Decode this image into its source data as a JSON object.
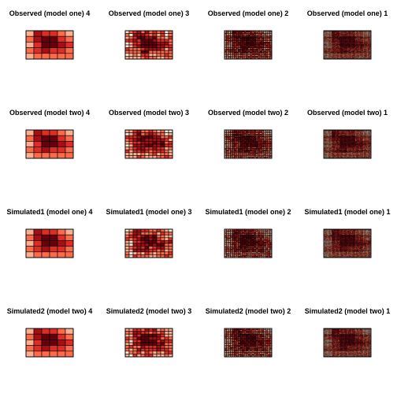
{
  "chart_data": {
    "type": "heatmap",
    "layout": "4x4 grid of cell-block heatmaps",
    "palette": [
      "#fee5d9",
      "#fcae91",
      "#fb6a4a",
      "#de2d26",
      "#a50f15",
      "#67000d"
    ],
    "grid_sizes": [
      [
        5,
        6
      ],
      [
        10,
        12
      ],
      [
        20,
        24
      ],
      [
        40,
        48
      ]
    ],
    "panels": [
      {
        "title": "Observed (model one) 4",
        "resolution": 4
      },
      {
        "title": "Observed (model one) 3",
        "resolution": 3
      },
      {
        "title": "Observed (model one) 2",
        "resolution": 2
      },
      {
        "title": "Observed (model one) 1",
        "resolution": 1
      },
      {
        "title": "Observed (model two) 4",
        "resolution": 4
      },
      {
        "title": "Observed (model two) 3",
        "resolution": 3
      },
      {
        "title": "Observed (model two) 2",
        "resolution": 2
      },
      {
        "title": "Observed (model two) 1",
        "resolution": 1
      },
      {
        "title": "Simulated1 (model one) 4",
        "resolution": 4
      },
      {
        "title": "Simulated1 (model one) 3",
        "resolution": 3
      },
      {
        "title": "Simulated1 (model one) 2",
        "resolution": 2
      },
      {
        "title": "Simulated1 (model one) 1",
        "resolution": 1
      },
      {
        "title": "Simulated2 (model two) 4",
        "resolution": 4
      },
      {
        "title": "Simulated2 (model two) 3",
        "resolution": 3
      },
      {
        "title": "Simulated2 (model two) 2",
        "resolution": 2
      },
      {
        "title": "Simulated2 (model two) 1",
        "resolution": 1
      }
    ],
    "coarse_values": [
      [
        1,
        4,
        3,
        3,
        2,
        1
      ],
      [
        2,
        4,
        5,
        5,
        3,
        2
      ],
      [
        1,
        3,
        5,
        5,
        4,
        3
      ],
      [
        2,
        3,
        4,
        3,
        3,
        2
      ],
      [
        1,
        2,
        2,
        2,
        2,
        2
      ]
    ]
  }
}
